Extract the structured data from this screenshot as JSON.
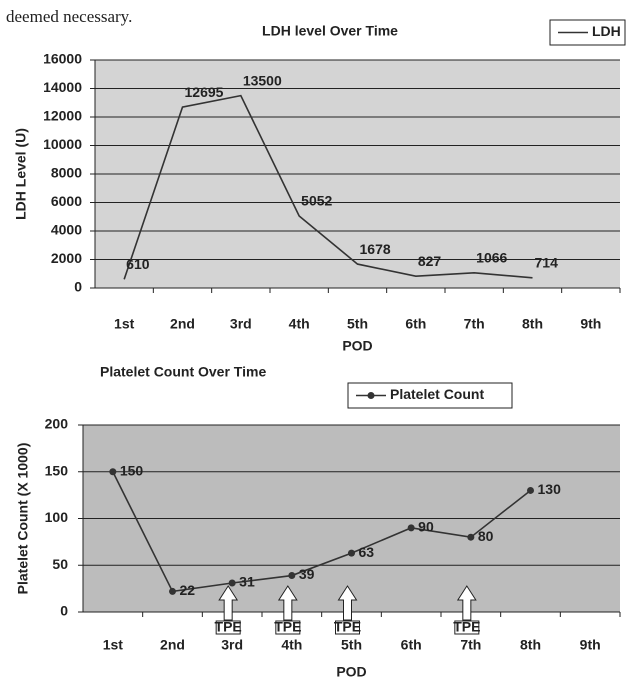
{
  "text": "deemed necessary.",
  "chart_data": [
    {
      "type": "line",
      "title": "LDH level Over Time",
      "x_label": "POD",
      "y_label": "LDH Level (U)",
      "categories": [
        "1st",
        "2nd",
        "3rd",
        "4th",
        "5th",
        "6th",
        "7th",
        "8th",
        "9th"
      ],
      "series": [
        {
          "name": "LDH",
          "color": "#333333",
          "values": [
            610,
            12695,
            13500,
            5052,
            1678,
            827,
            1066,
            714,
            null
          ]
        }
      ],
      "ylim": [
        0,
        16000
      ],
      "yticks": [
        0,
        2000,
        4000,
        6000,
        8000,
        10000,
        12000,
        14000,
        16000
      ],
      "grid": true,
      "legend": "top-right",
      "markers": false
    },
    {
      "type": "line",
      "title": "Platelet Count Over Time",
      "x_label": "POD",
      "y_label": "Platelet Count (X 1000)",
      "categories": [
        "1st",
        "2nd",
        "3rd",
        "4th",
        "5th",
        "6th",
        "7th",
        "8th",
        "9th"
      ],
      "series": [
        {
          "name": "Platelet Count",
          "color": "#333333",
          "values": [
            150,
            22,
            31,
            39,
            63,
            90,
            80,
            130,
            null
          ]
        }
      ],
      "ylim": [
        0,
        200
      ],
      "yticks": [
        0,
        50,
        100,
        150,
        200
      ],
      "grid": true,
      "legend": "top",
      "markers": true,
      "annotations": [
        {
          "text": "TPE",
          "category": "3rd"
        },
        {
          "text": "TPE",
          "category": "4th"
        },
        {
          "text": "TPE",
          "category": "5th"
        },
        {
          "text": "TPE",
          "category": "7th"
        }
      ]
    }
  ]
}
